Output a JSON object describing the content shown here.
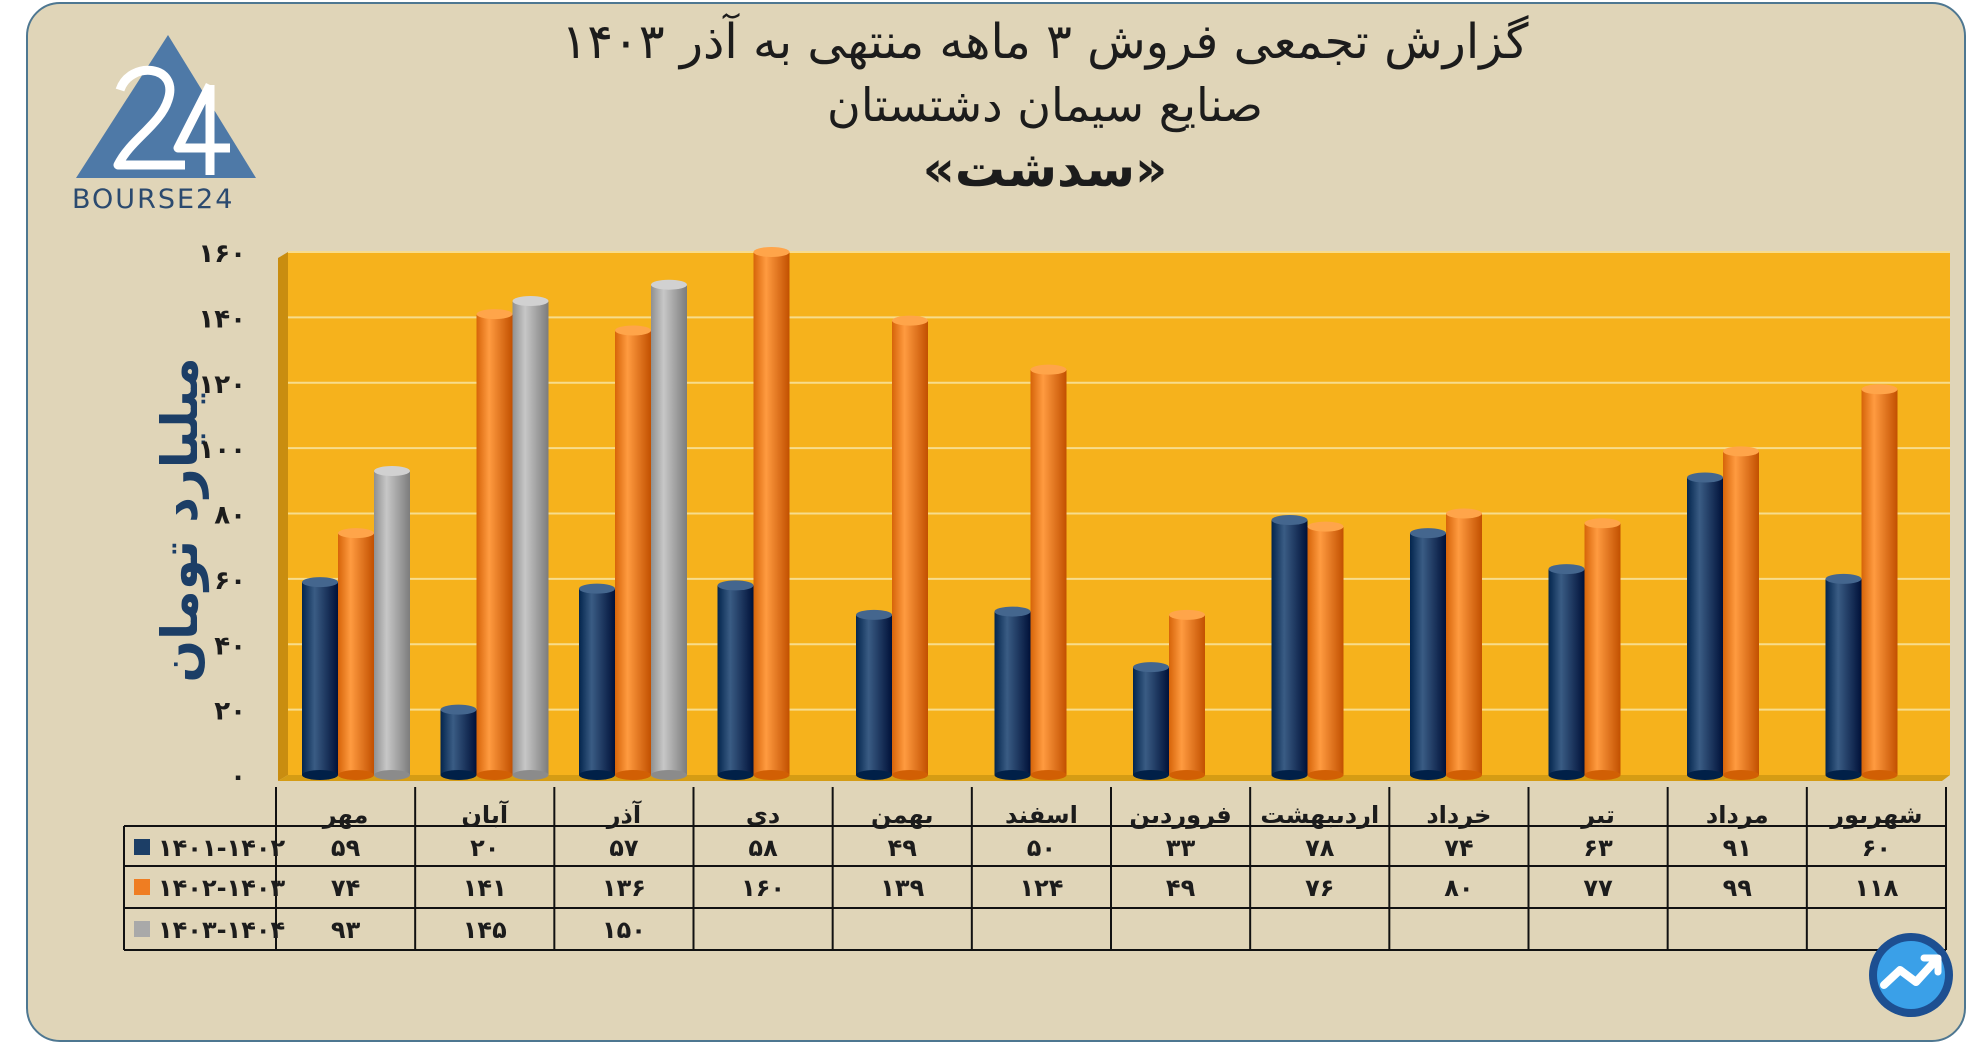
{
  "header": {
    "title_line1": "گزارش تجمعی فروش ۳ ماهه منتهی به آذر ۱۴۰۳",
    "title_line2": "صنایع سیمان دشتستان",
    "title_line3": "«سدشت»"
  },
  "logo": {
    "text": "BOURSE24",
    "icon": "bourse24-logo-icon"
  },
  "corner_icon": "trend-line-icon",
  "colors": {
    "background": "#e0d5b8",
    "plot_background": "#f6b21c",
    "series_1": "#1c3e66",
    "series_2": "#ef7d22",
    "series_3": "#a9a9a9"
  },
  "chart_data": {
    "type": "bar",
    "title": "گزارش تجمعی فروش ۳ ماهه منتهی به آذر ۱۴۰۳",
    "subtitle": "صنایع سیمان دشتستان «سدشت»",
    "ylabel": "میلیارد تومان",
    "xlabel": "",
    "ylim": [
      0,
      160
    ],
    "yticks": [
      "۰",
      "۲۰",
      "۴۰",
      "۶۰",
      "۸۰",
      "۱۰۰",
      "۱۲۰",
      "۱۴۰",
      "۱۶۰"
    ],
    "grid": true,
    "categories": [
      "مهر",
      "آبان",
      "آذر",
      "دی",
      "بهمن",
      "اسفند",
      "فروردین",
      "اردیبهشت",
      "خرداد",
      "تیر",
      "مرداد",
      "شهریور"
    ],
    "series": [
      {
        "name": "۱۴۰۱-۱۴۰۲",
        "color": "#1c3e66",
        "values": [
          59,
          20,
          57,
          58,
          49,
          50,
          33,
          78,
          74,
          63,
          91,
          60
        ],
        "labels": [
          "۵۹",
          "۲۰",
          "۵۷",
          "۵۸",
          "۴۹",
          "۵۰",
          "۳۳",
          "۷۸",
          "۷۴",
          "۶۳",
          "۹۱",
          "۶۰"
        ]
      },
      {
        "name": "۱۴۰۲-۱۴۰۳",
        "color": "#ef7d22",
        "values": [
          74,
          141,
          136,
          160,
          139,
          124,
          49,
          76,
          80,
          77,
          99,
          118
        ],
        "labels": [
          "۷۴",
          "۱۴۱",
          "۱۳۶",
          "۱۶۰",
          "۱۳۹",
          "۱۲۴",
          "۴۹",
          "۷۶",
          "۸۰",
          "۷۷",
          "۹۹",
          "۱۱۸"
        ]
      },
      {
        "name": "۱۴۰۳-۱۴۰۴",
        "color": "#a9a9a9",
        "values": [
          93,
          145,
          150,
          null,
          null,
          null,
          null,
          null,
          null,
          null,
          null,
          null
        ],
        "labels": [
          "۹۳",
          "۱۴۵",
          "۱۵۰",
          "",
          "",
          "",
          "",
          "",
          "",
          "",
          "",
          ""
        ]
      }
    ]
  }
}
